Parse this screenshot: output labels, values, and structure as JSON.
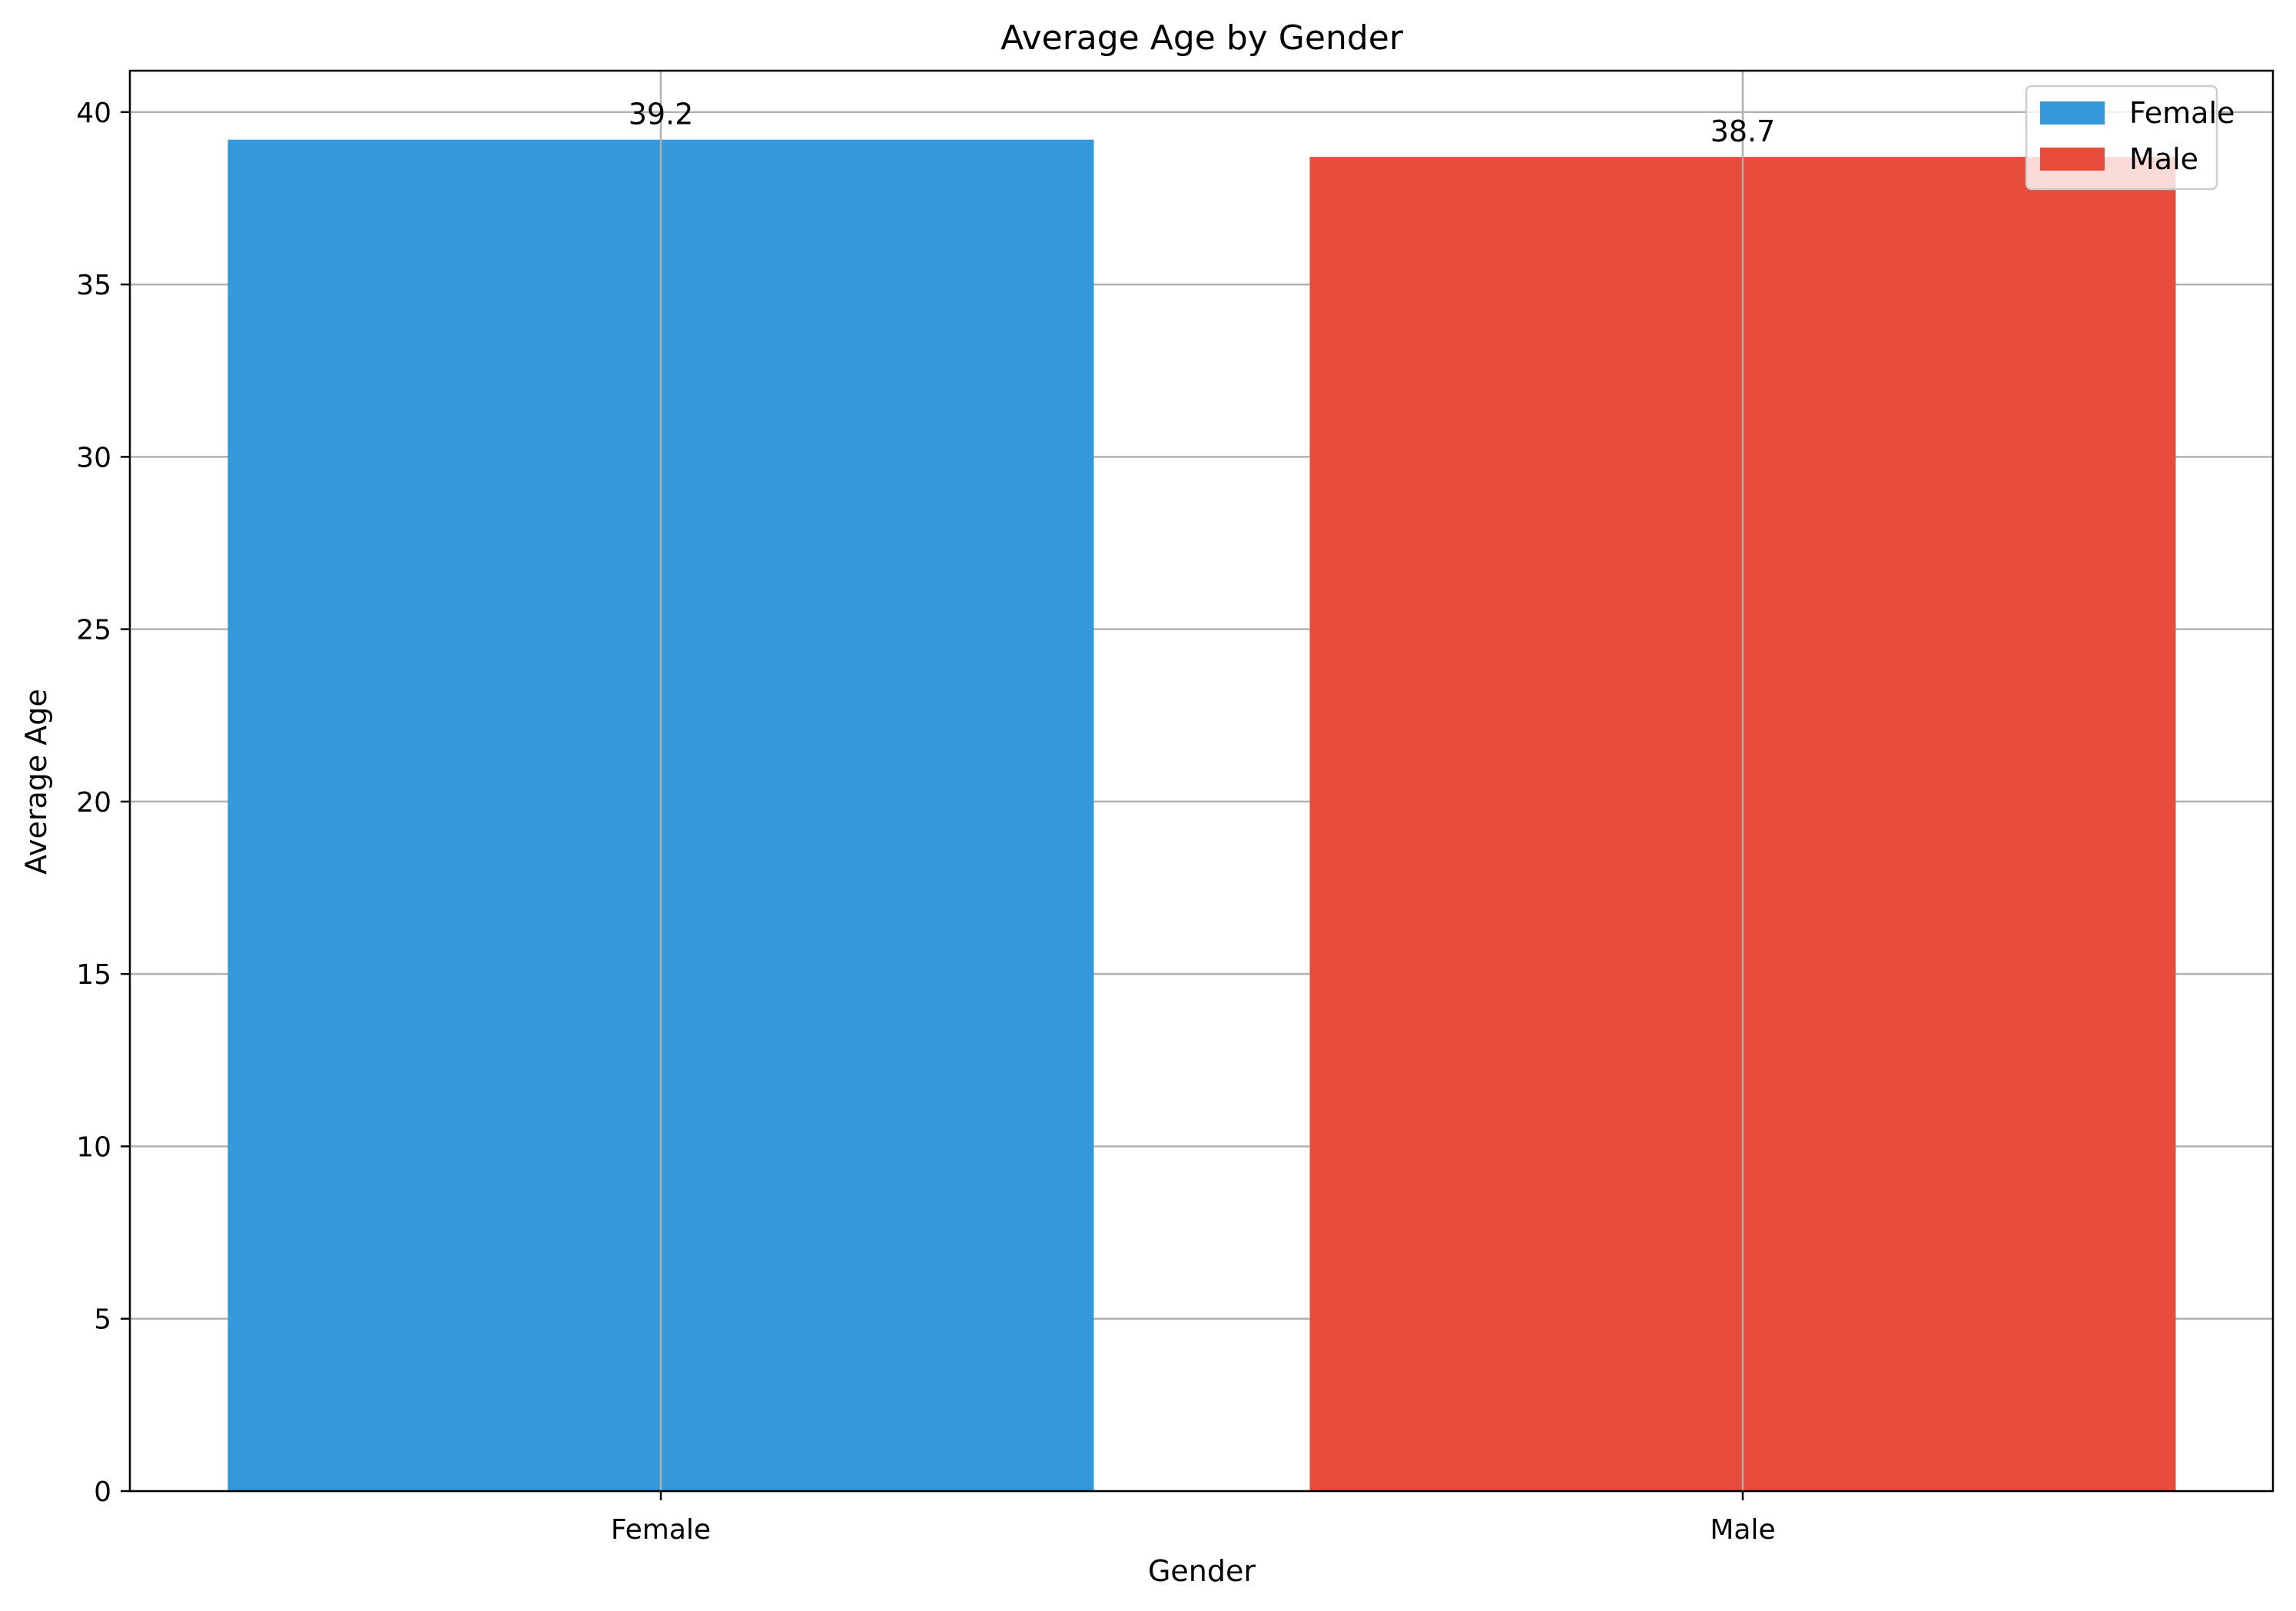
{
  "chart_data": {
    "type": "bar",
    "title": "Average Age by Gender",
    "xlabel": "Gender",
    "ylabel": "Average Age",
    "categories": [
      "Female",
      "Male"
    ],
    "values": [
      39.2,
      38.7
    ],
    "data_labels": [
      "39.2",
      "38.7"
    ],
    "colors": [
      "#3498db",
      "#e74c3c"
    ],
    "ylim": [
      0,
      41.2
    ],
    "yticks": [
      0,
      5,
      10,
      15,
      20,
      25,
      30,
      35,
      40
    ],
    "grid": true,
    "legend": {
      "placement": "top-right",
      "entries": [
        {
          "label": "Female",
          "color": "#3498db"
        },
        {
          "label": "Male",
          "color": "#e74c3c"
        }
      ]
    }
  }
}
